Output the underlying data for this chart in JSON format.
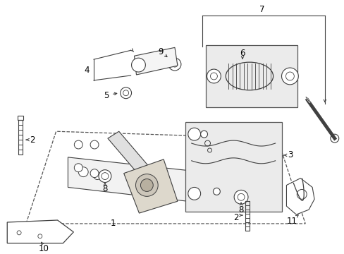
{
  "bg_color": "#ffffff",
  "dark_line": "#404040",
  "part_fill": "#e8e8e8",
  "circles_main": [
    [
      110,
      207,
      6
    ],
    [
      133,
      207,
      6
    ],
    [
      110,
      240,
      6
    ],
    [
      133,
      248,
      6
    ]
  ]
}
